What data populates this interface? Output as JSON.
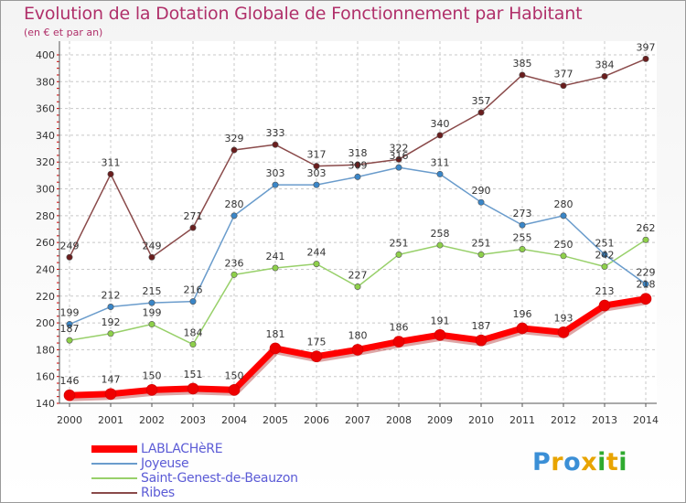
{
  "title": "Evolution de la Dotation Globale de Fonctionnement par Habitant",
  "subtitle": "(en € et par an)",
  "logo": {
    "text": "Proxiti",
    "colors": [
      "#3b8fd6",
      "#e8a400",
      "#3b8fd6",
      "#e8a400",
      "#2faa2f",
      "#e8a400",
      "#2faa2f"
    ]
  },
  "chart_data": {
    "type": "line",
    "title": "Evolution de la Dotation Globale de Fonctionnement par Habitant",
    "subtitle": "(en € et par an)",
    "x": [
      2000,
      2001,
      2002,
      2003,
      2004,
      2005,
      2006,
      2007,
      2008,
      2009,
      2010,
      2011,
      2012,
      2013,
      2014
    ],
    "ylim": [
      140,
      400
    ],
    "yticks": [
      140,
      160,
      180,
      200,
      220,
      240,
      260,
      280,
      300,
      320,
      340,
      360,
      380,
      400
    ],
    "grid": true,
    "legend": "bottom-left",
    "series": [
      {
        "name": "LABLACHèRE",
        "color": "#ff0000",
        "marker": "#ee0000",
        "width": 7,
        "values": [
          146,
          147,
          150,
          151,
          150,
          181,
          175,
          180,
          186,
          191,
          187,
          196,
          193,
          213,
          218
        ]
      },
      {
        "name": "Joyeuse",
        "color": "#6a9ccc",
        "marker": "#3a86c8",
        "width": 1.5,
        "values": [
          199,
          212,
          215,
          216,
          280,
          303,
          303,
          309,
          316,
          311,
          290,
          273,
          280,
          251,
          229
        ]
      },
      {
        "name": "Saint-Genest-de-Beauzon",
        "color": "#98d06a",
        "marker": "#8ed04a",
        "width": 1.5,
        "values": [
          187,
          192,
          199,
          184,
          236,
          241,
          244,
          227,
          251,
          258,
          251,
          255,
          250,
          242,
          262
        ]
      },
      {
        "name": "Ribes",
        "color": "#8a4a4a",
        "marker": "#6a1e1e",
        "width": 1.5,
        "values": [
          249,
          311,
          249,
          271,
          329,
          333,
          317,
          318,
          322,
          340,
          357,
          385,
          377,
          384,
          397
        ]
      }
    ]
  }
}
